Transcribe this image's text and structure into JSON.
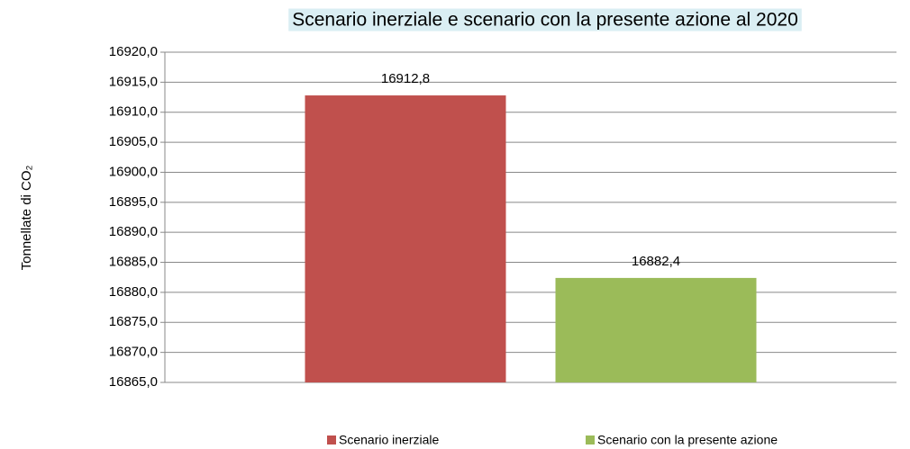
{
  "chart_data": {
    "type": "bar",
    "title": "Scenario inerziale e scenario con la presente azione al 2020",
    "y_label": "Tonnellate di CO₂",
    "categories": [
      null
    ],
    "series": [
      {
        "name": "Scenario inerziale",
        "color": "#c0504d",
        "values": [
          16912.8
        ],
        "value_labels": [
          "16912,8"
        ]
      },
      {
        "name": "Scenario con la presente azione",
        "color": "#9bbb59",
        "values": [
          16882.4
        ],
        "value_labels": [
          "16882,4"
        ]
      }
    ],
    "ylim": [
      16865,
      16920
    ],
    "yticks": [
      {
        "value": 16865,
        "label": "16865,0"
      },
      {
        "value": 16870,
        "label": "16870,0"
      },
      {
        "value": 16875,
        "label": "16875,0"
      },
      {
        "value": 16880,
        "label": "16880,0"
      },
      {
        "value": 16885,
        "label": "16885,0"
      },
      {
        "value": 16890,
        "label": "16890,0"
      },
      {
        "value": 16895,
        "label": "16895,0"
      },
      {
        "value": 16900,
        "label": "16900,0"
      },
      {
        "value": 16905,
        "label": "16905,0"
      },
      {
        "value": 16910,
        "label": "16910,0"
      },
      {
        "value": 16915,
        "label": "16915,0"
      },
      {
        "value": 16920,
        "label": "16920,0"
      }
    ],
    "grid": true,
    "legend": "bottom",
    "title_background": "#daeef3"
  }
}
